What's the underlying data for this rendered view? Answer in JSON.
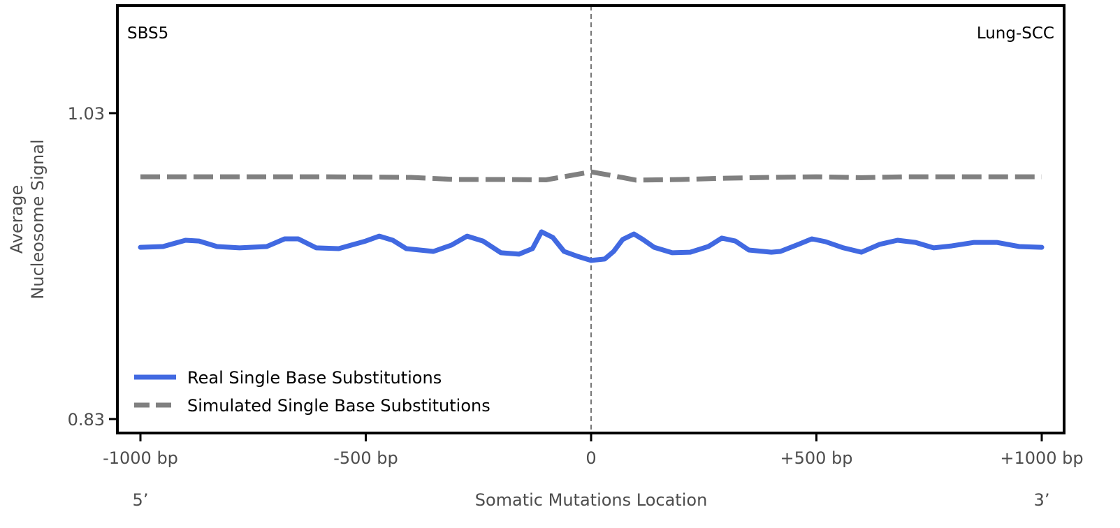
{
  "chart_data": {
    "type": "line",
    "title_left": "SBS5",
    "title_right": "Lung-SCC",
    "xlabel": "Somatic Mutations Location",
    "ylabel_line1": "Average",
    "ylabel_line2": "Nucleosome Signal",
    "xlim": [
      -1000,
      1000
    ],
    "ylim": [
      0.83,
      1.03
    ],
    "x_ticks": [
      -1000,
      -500,
      0,
      500,
      1000
    ],
    "x_tick_labels": [
      "-1000 bp",
      "-500 bp",
      "0",
      "+500 bp",
      "+1000 bp"
    ],
    "y_ticks": [
      0.83,
      1.03
    ],
    "y_tick_labels": [
      "0.83",
      "1.03"
    ],
    "end_label_left": "5’",
    "end_label_right": "3’",
    "vline_x": 0,
    "legend_position": "lower-left",
    "series": [
      {
        "name": "Real Single Base Substitutions",
        "color": "#4169E1",
        "style": "solid",
        "x": [
          -1000,
          -950,
          -900,
          -870,
          -830,
          -780,
          -720,
          -680,
          -650,
          -610,
          -560,
          -500,
          -470,
          -440,
          -410,
          -350,
          -310,
          -275,
          -240,
          -200,
          -160,
          -130,
          -110,
          -85,
          -60,
          -30,
          0,
          30,
          50,
          70,
          95,
          115,
          140,
          180,
          220,
          260,
          290,
          320,
          350,
          400,
          420,
          460,
          490,
          520,
          560,
          600,
          640,
          680,
          720,
          760,
          800,
          850,
          900,
          950,
          1000
        ],
        "values": [
          0.9423,
          0.9428,
          0.9469,
          0.9464,
          0.9428,
          0.9419,
          0.9428,
          0.9478,
          0.9478,
          0.9419,
          0.9414,
          0.9464,
          0.9496,
          0.9469,
          0.9414,
          0.9396,
          0.9437,
          0.9496,
          0.9464,
          0.9387,
          0.9378,
          0.9414,
          0.9524,
          0.9487,
          0.9396,
          0.9364,
          0.9337,
          0.9346,
          0.9396,
          0.9474,
          0.951,
          0.9474,
          0.9423,
          0.9387,
          0.9391,
          0.9428,
          0.9483,
          0.9464,
          0.9405,
          0.9391,
          0.9396,
          0.9442,
          0.9478,
          0.946,
          0.9419,
          0.9391,
          0.9442,
          0.9469,
          0.9455,
          0.9419,
          0.9432,
          0.9455,
          0.9455,
          0.9428,
          0.9423
        ]
      },
      {
        "name": "Simulated Single Base Substitutions",
        "color": "#808080",
        "style": "dashed",
        "x": [
          -1000,
          -800,
          -600,
          -400,
          -300,
          -200,
          -100,
          -50,
          0,
          50,
          100,
          200,
          300,
          400,
          500,
          600,
          700,
          800,
          900,
          1000
        ],
        "values": [
          0.9884,
          0.9884,
          0.9884,
          0.988,
          0.9866,
          0.9866,
          0.9864,
          0.989,
          0.9916,
          0.989,
          0.9862,
          0.9866,
          0.9875,
          0.988,
          0.9884,
          0.9878,
          0.9884,
          0.9884,
          0.9884,
          0.9884
        ]
      }
    ]
  }
}
